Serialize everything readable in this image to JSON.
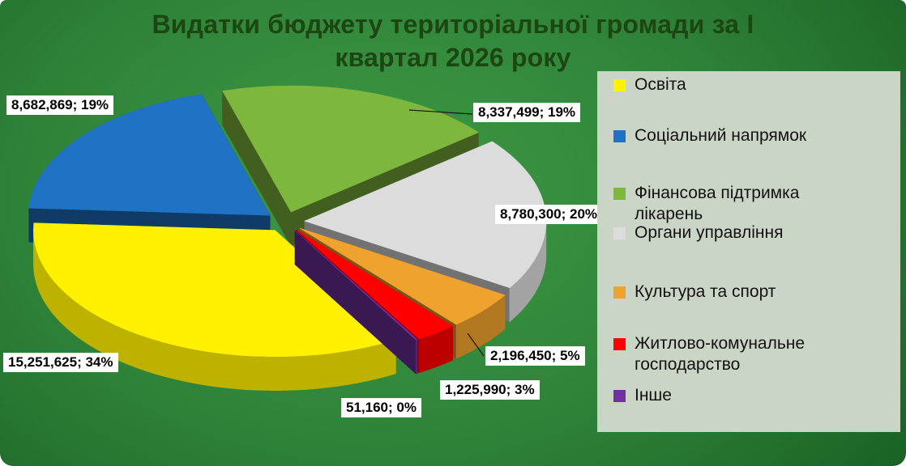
{
  "title": {
    "line1": "Видатки бюджету територіальної громади за І",
    "line2": "квартал 2026 року"
  },
  "chart_data": {
    "type": "pie",
    "style": "3d-exploded",
    "title": "Видатки бюджету територіальної громади за І квартал 2026 року",
    "legend_position": "right",
    "start_angle_deg": 150,
    "slices": [
      {
        "name": "Освіта",
        "value": 15251625,
        "pct": 34,
        "label": "15,251,625; 34%",
        "color": "#FFF100"
      },
      {
        "name": "Соціальний напрямок",
        "value": 8682869,
        "pct": 19,
        "label": "8,682,869; 19%",
        "color": "#1F72C4"
      },
      {
        "name": "Фінансова підтримка лікарень",
        "value": 8337499,
        "pct": 19,
        "label": "8,337,499; 19%",
        "color": "#7EB73E"
      },
      {
        "name": "Органи управління",
        "value": 8780300,
        "pct": 20,
        "label": "8,780,300; 20%",
        "color": "#DCDCDC"
      },
      {
        "name": "Культура та спорт",
        "value": 2196450,
        "pct": 5,
        "label": "2,196,450; 5%",
        "color": "#F0A22E"
      },
      {
        "name": "Житлово-комунальне господарство",
        "value": 1225990,
        "pct": 3,
        "label": "1,225,990; 3%",
        "color": "#FE0000"
      },
      {
        "name": "Інше",
        "value": 51160,
        "pct": 0,
        "label": "51,160; 0%",
        "color": "#7030A0"
      }
    ],
    "colors": {
      "title": "#1d4612",
      "legend_bg": "#cbd5c6",
      "label_bg": "#ffffff",
      "background_center": "#3f9a44",
      "background_edge": "#114c1b"
    }
  }
}
